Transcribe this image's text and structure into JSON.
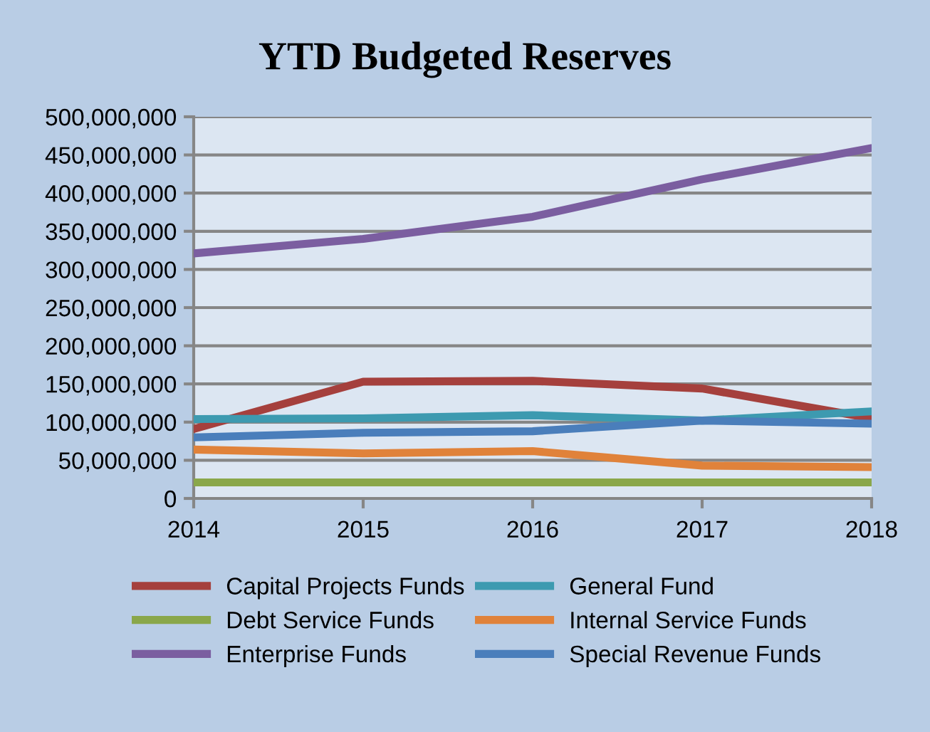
{
  "chart_data": {
    "type": "line",
    "title": "YTD Budgeted Reserves",
    "categories": [
      "2014",
      "2015",
      "2016",
      "2017",
      "2018"
    ],
    "ylim": [
      0,
      500000000
    ],
    "yticks": [
      {
        "value": 0,
        "label": "0"
      },
      {
        "value": 50000000,
        "label": "50,000,000"
      },
      {
        "value": 100000000,
        "label": "100,000,000"
      },
      {
        "value": 150000000,
        "label": "150,000,000"
      },
      {
        "value": 200000000,
        "label": "200,000,000"
      },
      {
        "value": 250000000,
        "label": "250,000,000"
      },
      {
        "value": 300000000,
        "label": "300,000,000"
      },
      {
        "value": 350000000,
        "label": "350,000,000"
      },
      {
        "value": 400000000,
        "label": "400,000,000"
      },
      {
        "value": 450000000,
        "label": "450,000,000"
      },
      {
        "value": 500000000,
        "label": "500,000,000"
      }
    ],
    "grid": "y",
    "legend": "bottom",
    "marker": "none",
    "line_style": "solid",
    "series": [
      {
        "name": "Capital Projects Funds",
        "color": "#a5403d",
        "values": [
          91000000,
          153000000,
          154000000,
          144000000,
          105000000
        ]
      },
      {
        "name": "Debt Service Funds",
        "color": "#8aa74a",
        "values": [
          21000000,
          21000000,
          21000000,
          21000000,
          21000000
        ]
      },
      {
        "name": "Enterprise Funds",
        "color": "#7b5ea0",
        "values": [
          321000000,
          340000000,
          369000000,
          418000000,
          459000000
        ]
      },
      {
        "name": "General Fund",
        "color": "#3d9ab0",
        "values": [
          104000000,
          105000000,
          109000000,
          102000000,
          114000000
        ]
      },
      {
        "name": "Internal Service Funds",
        "color": "#e0823a",
        "values": [
          64000000,
          59000000,
          62000000,
          43000000,
          41000000
        ]
      },
      {
        "name": "Special Revenue Funds",
        "color": "#4a7ebb",
        "values": [
          80000000,
          86000000,
          88000000,
          102000000,
          98000000
        ]
      }
    ]
  }
}
